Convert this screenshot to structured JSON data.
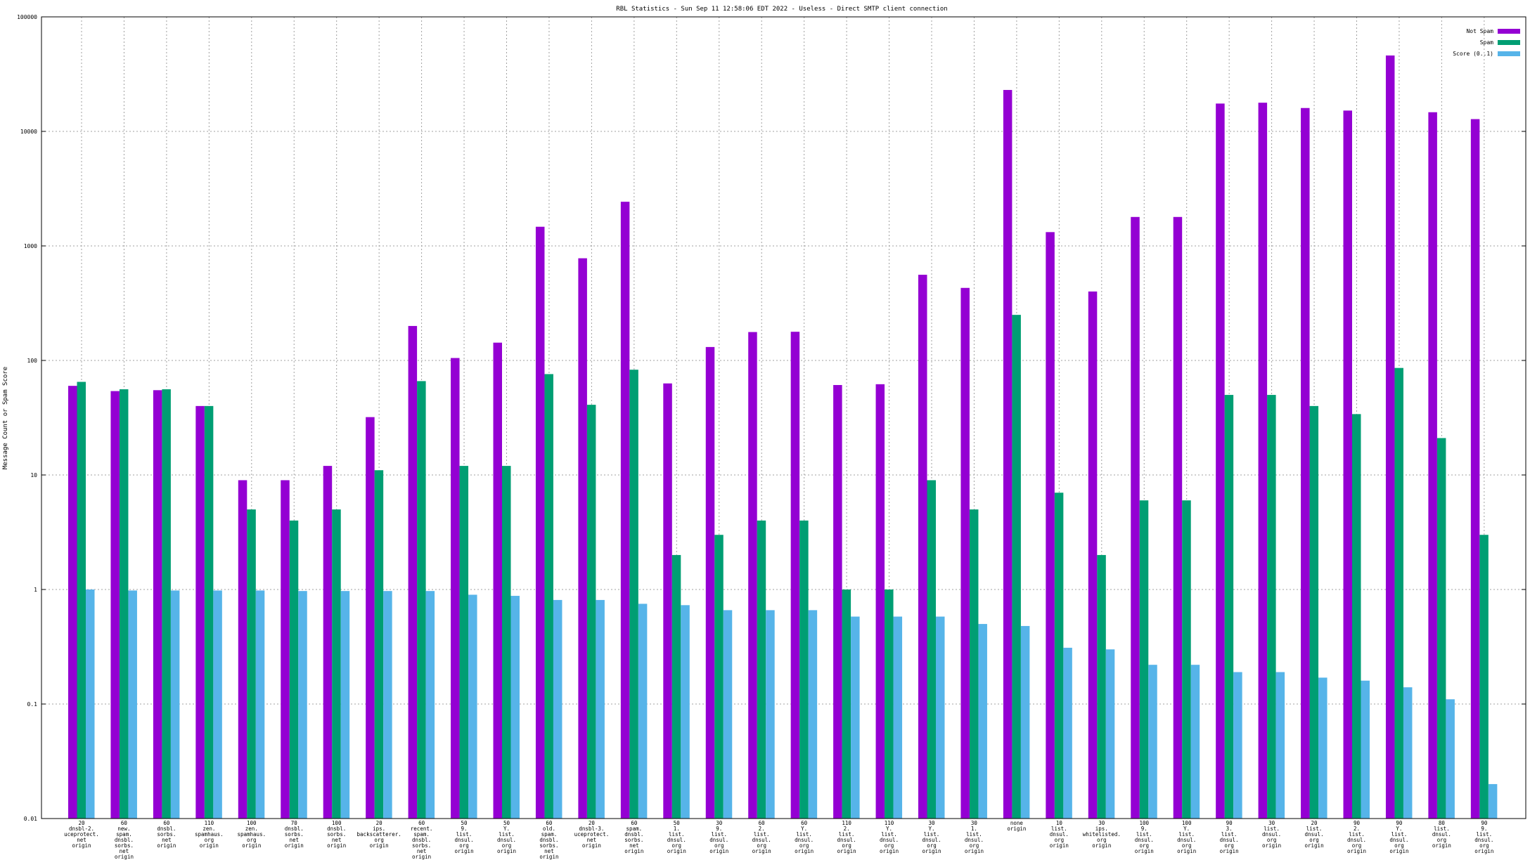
{
  "chart_data": {
    "type": "bar",
    "title": "RBL Statistics - Sun Sep 11 12:58:06 EDT 2022 - Useless - Direct SMTP client connection",
    "xlabel": "",
    "ylabel": "Message Count or Spam Score",
    "yscale": "log",
    "ylim": [
      0.01,
      100000
    ],
    "yticks": [
      "0.01",
      "0.1",
      "1",
      "10",
      "100",
      "1000",
      "10000",
      "100000"
    ],
    "grid": true,
    "legend_position": "top-right",
    "categories": [
      [
        "20",
        "dnsbl-2.",
        "uceprotect.",
        "net",
        "origin"
      ],
      [
        "60",
        "new.",
        "spam.",
        "dnsbl.",
        "sorbs.",
        "net",
        "origin"
      ],
      [
        "60",
        "dnsbl.",
        "sorbs.",
        "net",
        "origin"
      ],
      [
        "110",
        "zen.",
        "spamhaus.",
        "org",
        "origin"
      ],
      [
        "100",
        "zen.",
        "spamhaus.",
        "org",
        "origin"
      ],
      [
        "70",
        "dnsbl.",
        "sorbs.",
        "net",
        "origin"
      ],
      [
        "100",
        "dnsbl.",
        "sorbs.",
        "net",
        "origin"
      ],
      [
        "20",
        "ips.",
        "backscatterer.",
        "org",
        "origin"
      ],
      [
        "60",
        "recent.",
        "spam.",
        "dnsbl.",
        "sorbs.",
        "net",
        "origin"
      ],
      [
        "50",
        "9.",
        "list.",
        "dnsul.",
        "org",
        "origin"
      ],
      [
        "50",
        "Y.",
        "list.",
        "dnsul.",
        "org",
        "origin"
      ],
      [
        "60",
        "old.",
        "spam.",
        "dnsbl.",
        "sorbs.",
        "net",
        "origin"
      ],
      [
        "20",
        "dnsbl-3.",
        "uceprotect.",
        "net",
        "origin"
      ],
      [
        "60",
        "spam.",
        "dnsbl.",
        "sorbs.",
        "net",
        "origin"
      ],
      [
        "50",
        "1.",
        "list.",
        "dnsul.",
        "org",
        "origin"
      ],
      [
        "30",
        "9.",
        "list.",
        "dnsul.",
        "org",
        "origin"
      ],
      [
        "60",
        "2.",
        "list.",
        "dnsul.",
        "org",
        "origin"
      ],
      [
        "60",
        "Y.",
        "list.",
        "dnsul.",
        "org",
        "origin"
      ],
      [
        "110",
        "2.",
        "list.",
        "dnsul.",
        "org",
        "origin"
      ],
      [
        "110",
        "Y.",
        "list.",
        "dnsul.",
        "org",
        "origin"
      ],
      [
        "30",
        "Y.",
        "list.",
        "dnsul.",
        "org",
        "origin"
      ],
      [
        "30",
        "1.",
        "list.",
        "dnsul.",
        "org",
        "origin"
      ],
      [
        "none",
        "origin"
      ],
      [
        "10",
        "list.",
        "dnsul.",
        "org",
        "origin"
      ],
      [
        "30",
        "ips.",
        "whitelisted.",
        "org",
        "origin"
      ],
      [
        "100",
        "9.",
        "list.",
        "dnsul.",
        "org",
        "origin"
      ],
      [
        "100",
        "Y.",
        "list.",
        "dnsul.",
        "org",
        "origin"
      ],
      [
        "90",
        "3.",
        "list.",
        "dnsul.",
        "org",
        "origin"
      ],
      [
        "30",
        "list.",
        "dnsul.",
        "org",
        "origin"
      ],
      [
        "20",
        "list.",
        "dnsul.",
        "org",
        "origin"
      ],
      [
        "90",
        "2.",
        "list.",
        "dnsul.",
        "org",
        "origin"
      ],
      [
        "90",
        "Y.",
        "list.",
        "dnsul.",
        "org",
        "origin"
      ],
      [
        "80",
        "list.",
        "dnsul.",
        "org",
        "origin"
      ],
      [
        "90",
        "9.",
        "list.",
        "dnsul.",
        "org",
        "origin"
      ]
    ],
    "series": [
      {
        "name": "Not Spam",
        "color": "#9400d3",
        "values": [
          60,
          54,
          55,
          40,
          9,
          9,
          12,
          32,
          200,
          105,
          143,
          1470,
          780,
          2430,
          63,
          131,
          177,
          178,
          61,
          62,
          560,
          430,
          23000,
          1320,
          400,
          1790,
          1790,
          17500,
          17800,
          16000,
          15200,
          46000,
          14700,
          12800
        ]
      },
      {
        "name": "Spam",
        "color": "#009e73",
        "values": [
          65,
          56,
          56,
          40,
          5,
          4,
          5,
          11,
          66,
          12,
          12,
          76,
          41,
          83,
          2,
          3,
          4,
          4,
          1,
          1,
          9,
          5,
          250,
          7,
          2,
          6,
          6,
          50,
          50,
          40,
          34,
          86,
          21,
          3
        ]
      },
      {
        "name": "Score (0..1)",
        "color": "#56b4e9",
        "values": [
          1.0,
          0.98,
          0.98,
          0.98,
          0.98,
          0.97,
          0.97,
          0.97,
          0.97,
          0.9,
          0.88,
          0.81,
          0.81,
          0.75,
          0.73,
          0.66,
          0.66,
          0.66,
          0.58,
          0.58,
          0.58,
          0.5,
          0.48,
          0.31,
          0.3,
          0.22,
          0.22,
          0.19,
          0.19,
          0.17,
          0.16,
          0.14,
          0.11,
          0.02
        ]
      }
    ]
  }
}
